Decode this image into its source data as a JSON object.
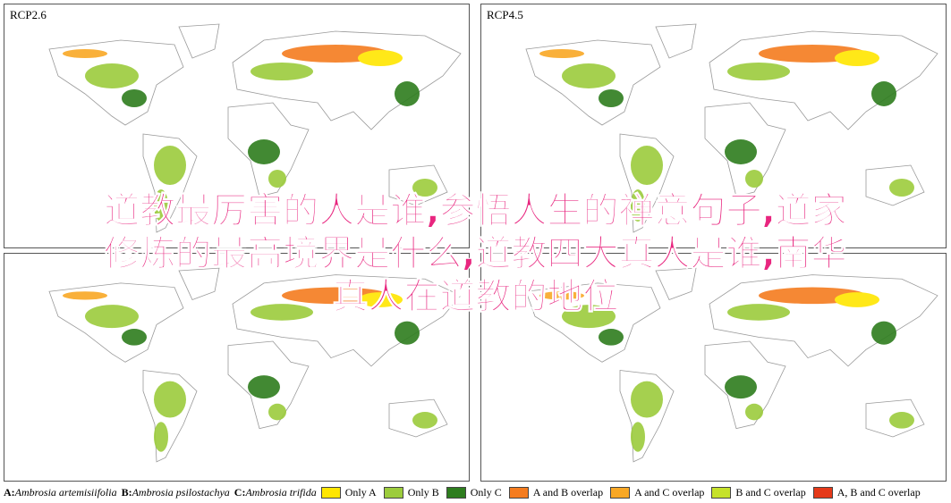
{
  "panels": [
    {
      "label": "RCP2.6"
    },
    {
      "label": "RCP4.5"
    },
    {
      "label": null
    },
    {
      "label": null
    }
  ],
  "overlay_title": [
    "道教最厉害的人是谁,参悟人生的禅意句子,道家",
    "修炼的最高境界是什么,道教四大真人是谁,南华",
    "真人在道教的地位"
  ],
  "species": [
    {
      "key": "A:",
      "name": "Ambrosia artemisiifolia"
    },
    {
      "key": "B:",
      "name": "Ambrosia psilostachya"
    },
    {
      "key": "C:",
      "name": "Ambrosia trifida"
    }
  ],
  "legend": [
    {
      "label": "Only A",
      "color": "#ffe600"
    },
    {
      "label": "Only B",
      "color": "#9ccc3c"
    },
    {
      "label": "Only C",
      "color": "#2e7d1e"
    },
    {
      "label": "A and B overlap",
      "color": "#f57c1f"
    },
    {
      "label": "A and C overlap",
      "color": "#f9a825"
    },
    {
      "label": "B and C overlap",
      "color": "#c6e22a"
    },
    {
      "label": "A, B and C overlap",
      "color": "#e53919"
    }
  ]
}
